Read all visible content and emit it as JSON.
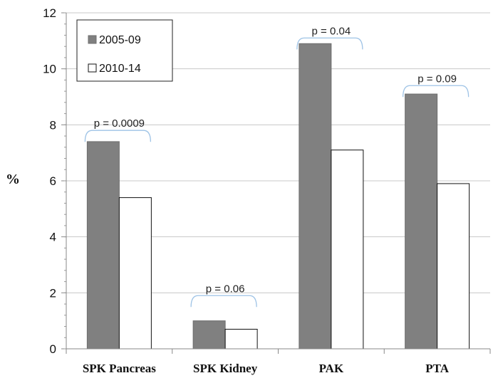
{
  "chart_data": {
    "type": "bar",
    "title": "",
    "xlabel": "",
    "ylabel": "%",
    "ylim": [
      0,
      12
    ],
    "yticks": [
      "0",
      "2",
      "4",
      "6",
      "8",
      "10",
      "12"
    ],
    "grid": true,
    "legend_position": "top-left",
    "categories": [
      "SPK Pancreas",
      "SPK Kidney",
      "PAK",
      "PTA"
    ],
    "series": [
      {
        "name": "2005-09",
        "values": [
          7.4,
          1.0,
          10.9,
          9.1
        ],
        "color": "#808080"
      },
      {
        "name": "2010-14",
        "values": [
          5.4,
          0.7,
          7.1,
          5.9
        ],
        "color": "#ffffff"
      }
    ],
    "annotations": [
      {
        "text": "p = 0.0009",
        "category": "SPK Pancreas",
        "y": 7.8
      },
      {
        "text": "p = 0.06",
        "category": "SPK Kidney",
        "y": 1.9
      },
      {
        "text": "p = 0.04",
        "category": "PAK",
        "y": 11.1
      },
      {
        "text": "p = 0.09",
        "category": "PTA",
        "y": 9.4
      }
    ],
    "bracket_color": "#9ec3e6"
  }
}
